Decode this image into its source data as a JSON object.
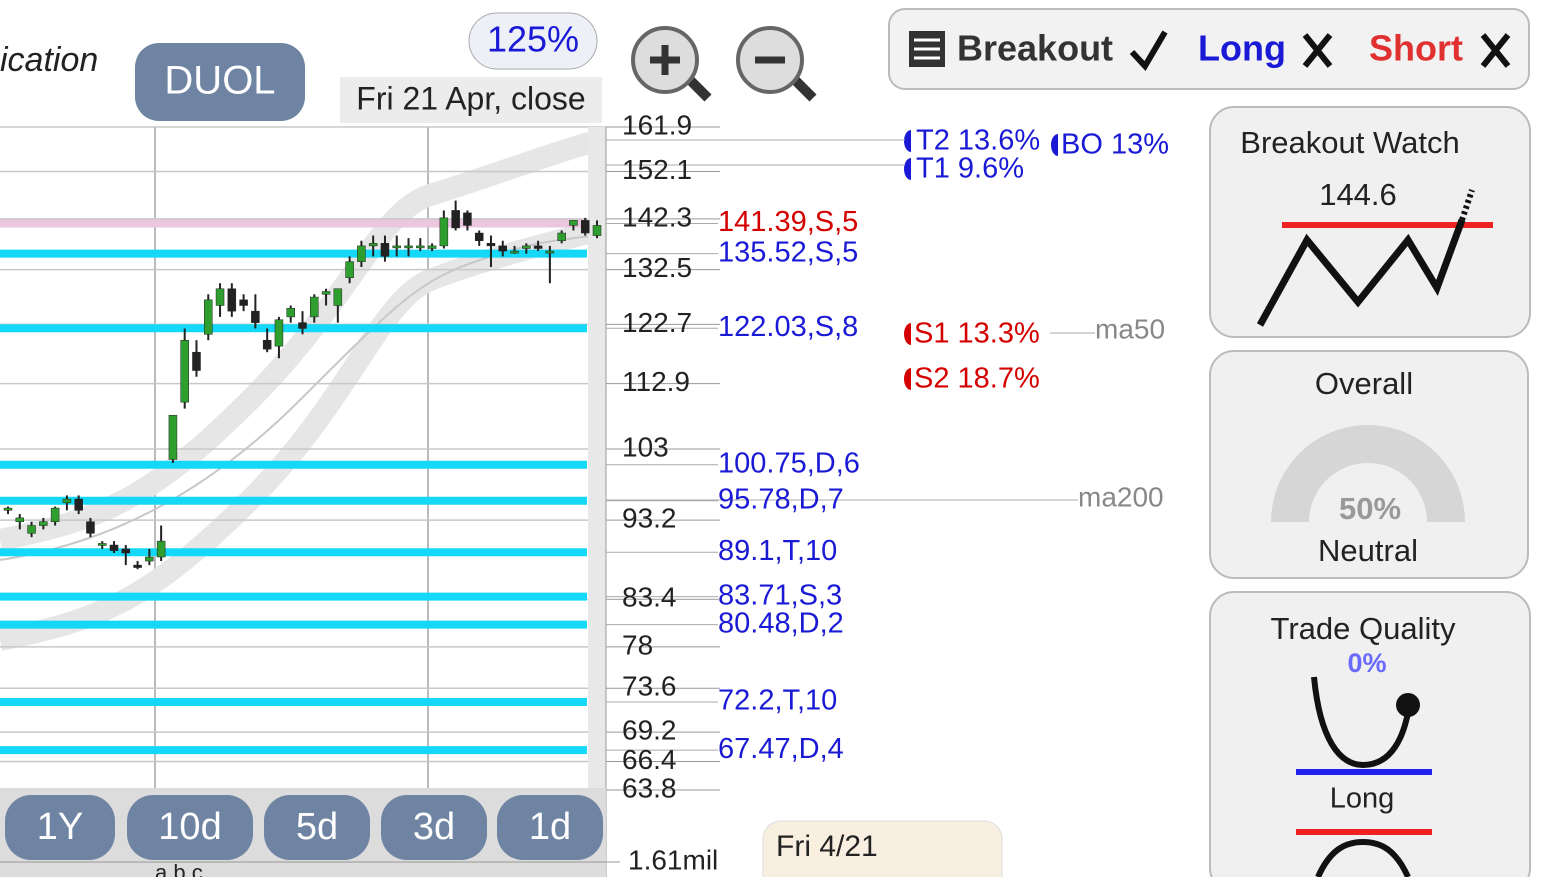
{
  "header": {
    "title_fragment": "ication",
    "ticker": "DUOL",
    "zoom": "125%",
    "date": "Fri 21 Apr, close"
  },
  "toolbar": {
    "breakout": "Breakout",
    "long": "Long",
    "short": "Short"
  },
  "chart": {
    "ylim": [
      63.8,
      161.9
    ],
    "log": true,
    "yticks": [
      161.9,
      152.1,
      142.3,
      132.5,
      122.7,
      112.9,
      103,
      93.2,
      83.4,
      78,
      73.6,
      69.2,
      66.4,
      63.8
    ],
    "volume_label": "1.61mil",
    "footer_fragment": "a b c",
    "up_color": "#2e9e2e",
    "down_color": "#222222",
    "candles": [
      [
        94.5,
        95,
        94,
        94.8
      ],
      [
        93,
        94,
        92,
        93.5
      ],
      [
        91.5,
        93,
        91,
        92.5
      ],
      [
        92.5,
        93.5,
        92,
        93
      ],
      [
        93,
        95,
        92.5,
        94.8
      ],
      [
        95.5,
        96.5,
        94.5,
        96
      ],
      [
        96,
        96.5,
        94,
        94.5
      ],
      [
        93,
        93.5,
        91,
        91.5
      ],
      [
        90,
        90.5,
        89.5,
        90.2
      ],
      [
        90,
        90.5,
        89,
        89.3
      ],
      [
        89.5,
        90,
        87.5,
        89
      ],
      [
        87.5,
        88,
        87,
        87.2
      ],
      [
        88,
        89.5,
        87.5,
        88.5
      ],
      [
        88.5,
        92.5,
        88,
        90.5
      ],
      [
        101.5,
        108,
        101,
        108
      ],
      [
        110,
        122,
        109,
        120
      ],
      [
        118,
        120,
        114,
        115
      ],
      [
        121,
        128,
        120,
        127
      ],
      [
        126,
        130,
        124,
        129
      ],
      [
        129,
        130,
        124,
        125
      ],
      [
        127,
        128,
        125,
        126
      ],
      [
        125,
        128,
        122,
        123
      ],
      [
        120,
        122,
        118,
        118.5
      ],
      [
        119,
        124,
        117,
        123.5
      ],
      [
        124,
        126,
        123,
        125.5
      ],
      [
        123,
        125,
        121,
        122
      ],
      [
        124,
        128,
        123,
        127.5
      ],
      [
        128,
        129,
        126,
        128.5
      ],
      [
        126,
        129,
        123,
        129
      ],
      [
        131,
        135,
        130,
        134
      ],
      [
        134,
        138,
        133,
        137
      ],
      [
        137,
        139,
        135,
        137.5
      ],
      [
        137.5,
        139,
        134,
        135
      ],
      [
        137,
        139,
        135,
        137
      ],
      [
        137,
        138.5,
        135,
        137
      ],
      [
        137,
        138.5,
        136,
        137
      ],
      [
        136.5,
        137.5,
        136,
        137
      ],
      [
        137,
        144,
        136.5,
        142.5
      ],
      [
        144,
        146,
        140,
        140.5
      ],
      [
        143.5,
        144,
        140,
        141
      ],
      [
        139.5,
        140,
        137,
        138
      ],
      [
        137.5,
        139,
        133,
        137
      ],
      [
        137,
        138,
        135,
        136
      ],
      [
        136,
        137,
        135.5,
        136
      ],
      [
        136.5,
        137.5,
        135.5,
        137
      ],
      [
        137,
        138,
        136,
        136.5
      ],
      [
        136,
        137,
        130,
        136
      ],
      [
        138,
        140,
        137.5,
        139.5
      ],
      [
        141,
        142,
        140,
        142
      ],
      [
        142,
        142.5,
        139,
        139.5
      ],
      [
        139,
        142,
        138.5,
        141
      ]
    ],
    "levels": [
      {
        "price": 141.39,
        "label": "141.39,S,5",
        "color": "#d40000",
        "line_color": "#ebc6df"
      },
      {
        "price": 135.52,
        "label": "135.52,S,5",
        "color": "#1a1ad6",
        "line_color": "#14d8f7"
      },
      {
        "price": 122.03,
        "label": "122.03,S,8",
        "color": "#1a1ad6",
        "line_color": "#14d8f7"
      },
      {
        "price": 100.75,
        "label": "100.75,D,6",
        "color": "#1a1ad6",
        "line_color": "#14d8f7"
      },
      {
        "price": 95.78,
        "label": "95.78,D,7",
        "color": "#1a1ad6",
        "line_color": "#14d8f7"
      },
      {
        "price": 89.1,
        "label": "89.1,T,10",
        "color": "#1a1ad6",
        "line_color": "#14d8f7"
      },
      {
        "price": 83.71,
        "label": "83.71,S,3",
        "color": "#1a1ad6",
        "line_color": "#14d8f7"
      },
      {
        "price": 80.48,
        "label": "80.48,D,2",
        "color": "#1a1ad6",
        "line_color": "#14d8f7"
      },
      {
        "price": 72.2,
        "label": "72.2,T,10",
        "color": "#1a1ad6",
        "line_color": "#14d8f7"
      },
      {
        "price": 67.47,
        "label": "67.47,D,4",
        "color": "#1a1ad6",
        "line_color": "#14d8f7"
      }
    ]
  },
  "targets": {
    "t2": "T2 13.6%",
    "t1": "T1 9.6%",
    "bo": "BO 13%",
    "s1": "S1 13.3%",
    "s2": "S2 18.7%",
    "ma50": "ma50",
    "ma200": "ma200"
  },
  "timeframes": [
    "1Y",
    "10d",
    "5d",
    "3d",
    "1d"
  ],
  "info_box": "Fri 4/21",
  "panels": {
    "breakout_watch": {
      "title": "Breakout Watch",
      "value": "144.6"
    },
    "overall": {
      "title": "Overall",
      "value": "50%",
      "status": "Neutral"
    },
    "trade_quality": {
      "title": "Trade Quality",
      "value": "0%",
      "status": "Long"
    }
  }
}
